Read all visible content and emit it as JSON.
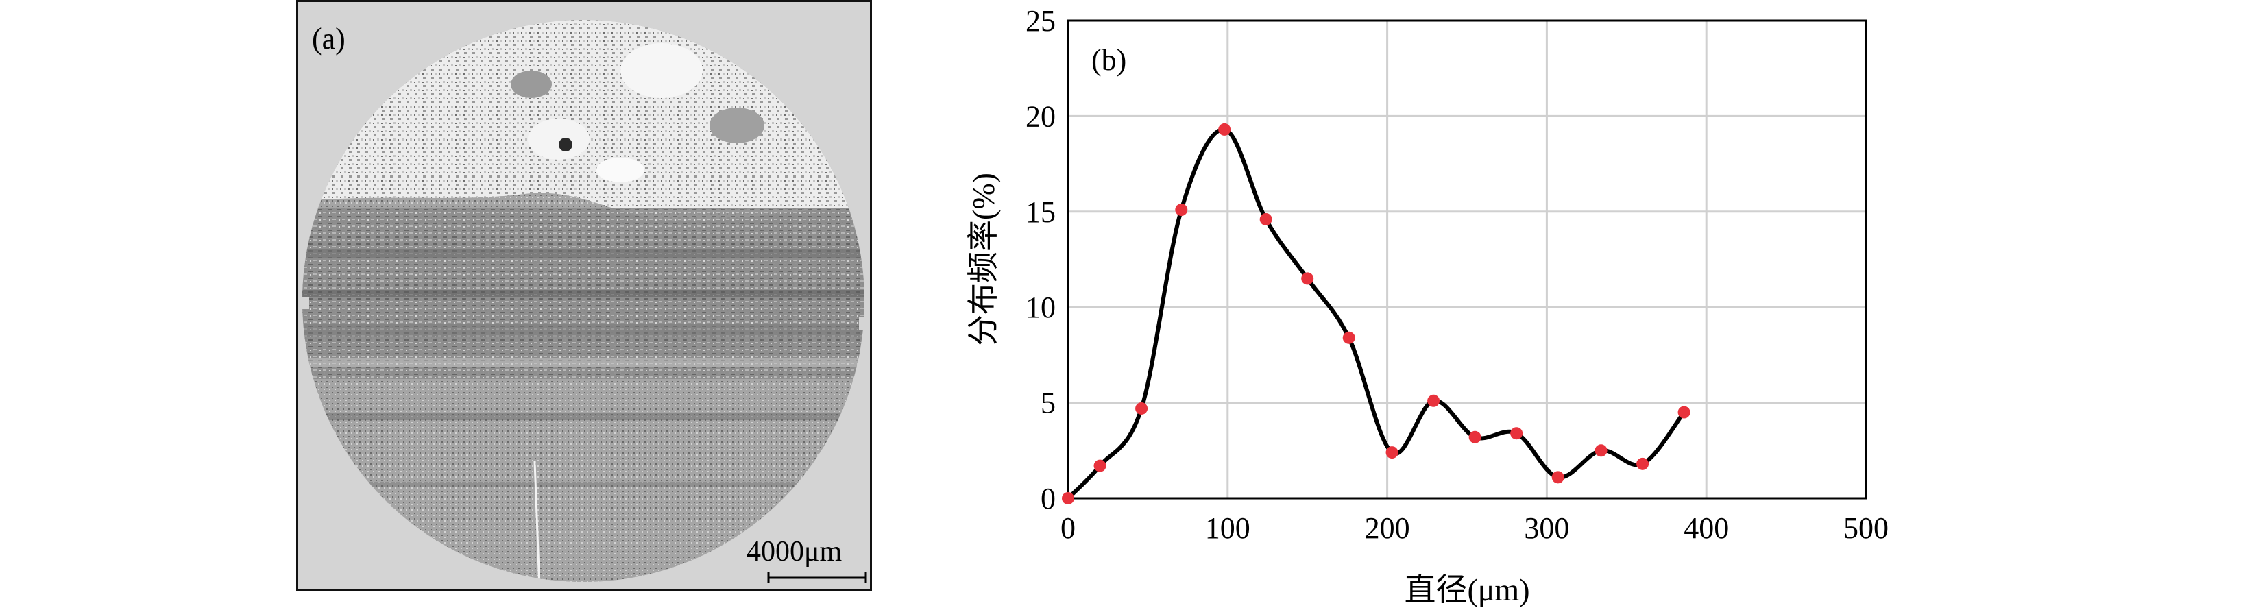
{
  "figure": {
    "panel_a": {
      "tag": "(a)",
      "scale_bar_label": "4000μm"
    },
    "panel_b": {
      "tag": "(b)"
    }
  },
  "chart_data": {
    "type": "line",
    "xlabel": "直径(μm)",
    "ylabel": "分布频率(%)",
    "xlim": [
      0,
      500
    ],
    "ylim": [
      0,
      25
    ],
    "xticks": [
      0,
      100,
      200,
      300,
      400,
      500
    ],
    "yticks": [
      0,
      5,
      10,
      15,
      20,
      25
    ],
    "grid": true,
    "smooth": true,
    "line_color": "#000000",
    "marker_color": "#e8323c",
    "series": [
      {
        "x": [
          0,
          20,
          46,
          71,
          98,
          124,
          150,
          176,
          203,
          229,
          255,
          281,
          307,
          334,
          360,
          386
        ],
        "y": [
          0,
          1.7,
          4.7,
          15.1,
          19.3,
          14.6,
          11.5,
          8.4,
          2.4,
          5.1,
          3.2,
          3.4,
          1.1,
          2.5,
          1.8,
          4.5
        ]
      }
    ]
  }
}
